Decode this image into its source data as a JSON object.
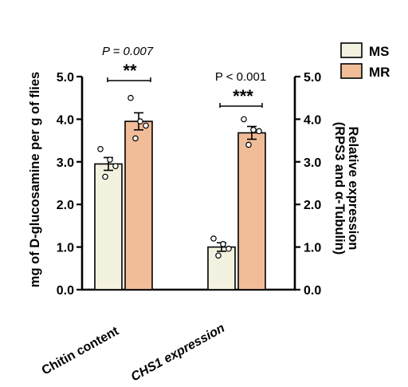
{
  "chart_data": {
    "type": "bar",
    "categories": [
      "Chitin content",
      "CHS1 expression"
    ],
    "series": [
      {
        "name": "MS",
        "color": "#f3f1df",
        "values": [
          2.95,
          1.0
        ],
        "errors": [
          0.15,
          0.1
        ],
        "points": [
          [
            3.3,
            3.05,
            2.9,
            2.65
          ],
          [
            1.2,
            1.07,
            0.96,
            0.8
          ]
        ]
      },
      {
        "name": "MR",
        "color": "#f1bc98",
        "values": [
          3.95,
          3.68
        ],
        "errors": [
          0.2,
          0.15
        ],
        "points": [
          [
            4.5,
            3.95,
            3.85,
            3.55
          ],
          [
            4.0,
            3.75,
            3.72,
            3.4
          ]
        ]
      }
    ],
    "ylabel_left": "mg of D-glucosamine per g of flies",
    "ylabel_right_line1": "Relative expression",
    "ylabel_right_line2": "(RPS3 and α-Tubulin)",
    "ylim": [
      0,
      5
    ],
    "ticks": [
      "0.0",
      "1.0",
      "2.0",
      "3.0",
      "4.0",
      "5.0"
    ],
    "annotations": [
      {
        "pvalue": "P = 0.007",
        "stars": "**"
      },
      {
        "pvalue": "P < 0.001",
        "stars": "***"
      }
    ],
    "legend_position": "top-right"
  }
}
